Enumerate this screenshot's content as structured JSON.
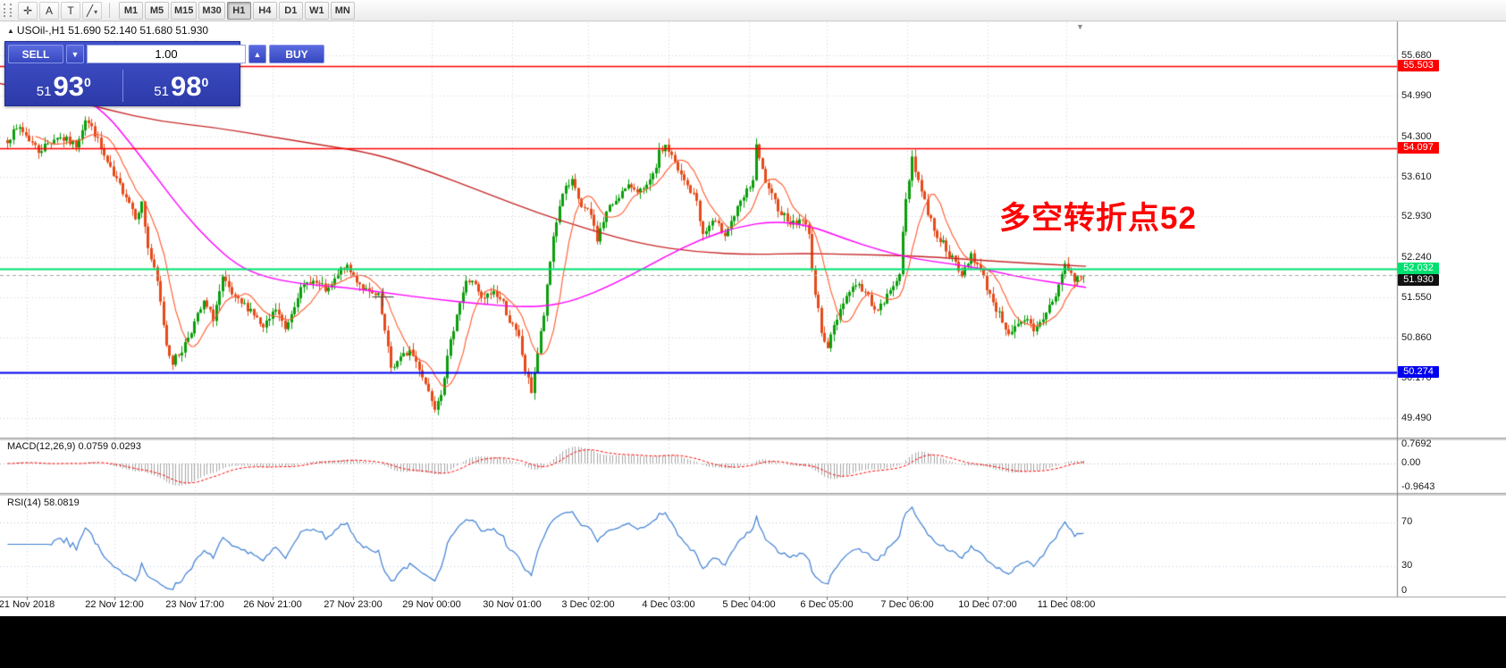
{
  "toolbar": {
    "tools": [
      {
        "name": "crosshair",
        "glyph": "✛"
      },
      {
        "name": "text",
        "glyph": "A"
      },
      {
        "name": "label",
        "glyph": "T"
      },
      {
        "name": "shapes",
        "glyph": "╱"
      }
    ],
    "shapes_caret": "▾",
    "timeframes": [
      {
        "label": "M1",
        "active": false
      },
      {
        "label": "M5",
        "active": false
      },
      {
        "label": "M15",
        "active": false
      },
      {
        "label": "M30",
        "active": false
      },
      {
        "label": "H1",
        "active": true
      },
      {
        "label": "H4",
        "active": false
      },
      {
        "label": "D1",
        "active": false
      },
      {
        "label": "W1",
        "active": false
      },
      {
        "label": "MN",
        "active": false
      }
    ]
  },
  "chart": {
    "symbol_header": "USOil-,H1 51.690 52.140 51.680 51.930",
    "collapse_marker": "▲",
    "shift_marker": "▼",
    "annotation": "多空转折点52",
    "annotation_color": "#fe0000"
  },
  "trade_panel": {
    "sell_label": "SELL",
    "buy_label": "BUY",
    "volume": "1.00",
    "sell_price": {
      "prefix": "51",
      "big": "93",
      "sup": "0"
    },
    "buy_price": {
      "prefix": "51",
      "big": "98",
      "sup": "0"
    }
  },
  "indicators": {
    "macd": {
      "label": "MACD(12,26,9) 0.0759 0.0293",
      "axis": [
        "0.7692",
        "0.00",
        "-0.9643"
      ]
    },
    "rsi": {
      "label": "RSI(14) 58.0819",
      "axis": [
        "70",
        "30",
        "0"
      ]
    }
  },
  "chart_data": {
    "type": "candlestick",
    "symbol": "USOil-",
    "timeframe": "H1",
    "ohlc_header": {
      "open": 51.69,
      "high": 52.14,
      "low": 51.68,
      "close": 51.93
    },
    "quote": {
      "bid": 51.93,
      "ask": 51.98
    },
    "candle_colors": {
      "up": "#0b9e0b",
      "down": "#e64a19"
    },
    "y_axis": {
      "gridline_prices": [
        55.68,
        54.99,
        54.3,
        53.61,
        52.93,
        52.24,
        51.55,
        50.86,
        50.17,
        49.49
      ],
      "gridline_labels": [
        "55.680",
        "54.990",
        "54.300",
        "53.610",
        "52.930",
        "52.240",
        "51.550",
        "50.860",
        "50.170",
        "49.490"
      ]
    },
    "x_axis": {
      "tick_labels": [
        "21 Nov 2018",
        "22 Nov 12:00",
        "23 Nov 17:00",
        "26 Nov 21:00",
        "27 Nov 23:00",
        "29 Nov 00:00",
        "30 Nov 01:00",
        "3 Dec 02:00",
        "4 Dec 03:00",
        "5 Dec 04:00",
        "6 Dec 05:00",
        "7 Dec 06:00",
        "10 Dec 07:00",
        "11 Dec 08:00"
      ],
      "tick_x": [
        30,
        128,
        218,
        305,
        395,
        483,
        573,
        658,
        748,
        838,
        925,
        1015,
        1105,
        1193
      ]
    },
    "hlines": [
      {
        "price": 55.503,
        "label": "55.503",
        "color": "#ff0000",
        "width": 1.3
      },
      {
        "price": 54.097,
        "label": "54.097",
        "color": "#ff0000",
        "width": 1.3
      },
      {
        "price": 52.032,
        "label": "52.032",
        "color": "#00e070",
        "width": 2
      },
      {
        "price": 50.274,
        "label": "50.274",
        "color": "#0000f0",
        "width": 2
      }
    ],
    "current_price": {
      "price": 51.93,
      "label": "51.930",
      "badge_color": "#111111"
    },
    "price_waypoints": [
      [
        0,
        54.25
      ],
      [
        4,
        54.45
      ],
      [
        10,
        54.05
      ],
      [
        16,
        54.3
      ],
      [
        22,
        54.15
      ],
      [
        25,
        54.6
      ],
      [
        28,
        54.35
      ],
      [
        31,
        53.95
      ],
      [
        34,
        53.6
      ],
      [
        38,
        53.3
      ],
      [
        41,
        52.95
      ],
      [
        43,
        53.15
      ],
      [
        45,
        52.4
      ],
      [
        48,
        51.8
      ],
      [
        51,
        50.75
      ],
      [
        53,
        50.45
      ],
      [
        56,
        50.65
      ],
      [
        59,
        51.0
      ],
      [
        63,
        51.45
      ],
      [
        66,
        51.2
      ],
      [
        69,
        51.85
      ],
      [
        73,
        51.5
      ],
      [
        78,
        51.35
      ],
      [
        82,
        51.0
      ],
      [
        86,
        51.35
      ],
      [
        89,
        51.0
      ],
      [
        93,
        51.6
      ],
      [
        97,
        51.85
      ],
      [
        100,
        51.75
      ],
      [
        103,
        51.65
      ],
      [
        108,
        52.1
      ],
      [
        112,
        51.85
      ],
      [
        116,
        51.6
      ],
      [
        119,
        51.55
      ],
      [
        121,
        50.95
      ],
      [
        123,
        50.35
      ],
      [
        126,
        50.5
      ],
      [
        129,
        50.65
      ],
      [
        132,
        50.35
      ],
      [
        135,
        49.95
      ],
      [
        137,
        49.7
      ],
      [
        139,
        49.95
      ],
      [
        141,
        50.5
      ],
      [
        144,
        51.3
      ],
      [
        147,
        51.8
      ],
      [
        149,
        51.85
      ],
      [
        152,
        51.5
      ],
      [
        156,
        51.65
      ],
      [
        159,
        51.45
      ],
      [
        161,
        51.15
      ],
      [
        164,
        50.85
      ],
      [
        166,
        50.3
      ],
      [
        168,
        49.95
      ],
      [
        170,
        50.6
      ],
      [
        172,
        51.25
      ],
      [
        175,
        52.6
      ],
      [
        178,
        53.35
      ],
      [
        181,
        53.5
      ],
      [
        184,
        53.1
      ],
      [
        187,
        52.95
      ],
      [
        189,
        52.55
      ],
      [
        192,
        53.0
      ],
      [
        196,
        53.3
      ],
      [
        200,
        53.45
      ],
      [
        204,
        53.35
      ],
      [
        207,
        53.6
      ],
      [
        209,
        54.0
      ],
      [
        211,
        54.15
      ],
      [
        213,
        53.95
      ],
      [
        215,
        53.7
      ],
      [
        218,
        53.45
      ],
      [
        221,
        53.2
      ],
      [
        223,
        52.6
      ],
      [
        226,
        52.85
      ],
      [
        230,
        52.65
      ],
      [
        233,
        52.95
      ],
      [
        236,
        53.25
      ],
      [
        239,
        53.55
      ],
      [
        240,
        54.1
      ],
      [
        242,
        53.7
      ],
      [
        244,
        53.35
      ],
      [
        248,
        53.0
      ],
      [
        252,
        52.8
      ],
      [
        255,
        52.9
      ],
      [
        257,
        52.6
      ],
      [
        259,
        51.6
      ],
      [
        261,
        51.0
      ],
      [
        263,
        50.7
      ],
      [
        265,
        51.05
      ],
      [
        268,
        51.5
      ],
      [
        272,
        51.8
      ],
      [
        276,
        51.55
      ],
      [
        279,
        51.3
      ],
      [
        283,
        51.65
      ],
      [
        286,
        52.0
      ],
      [
        288,
        53.2
      ],
      [
        290,
        53.95
      ],
      [
        292,
        53.55
      ],
      [
        295,
        53.0
      ],
      [
        298,
        52.6
      ],
      [
        301,
        52.4
      ],
      [
        303,
        52.2
      ],
      [
        306,
        51.9
      ],
      [
        309,
        52.3
      ],
      [
        312,
        52.0
      ],
      [
        315,
        51.6
      ],
      [
        318,
        51.25
      ],
      [
        321,
        50.95
      ],
      [
        324,
        51.05
      ],
      [
        327,
        51.15
      ],
      [
        329,
        50.95
      ],
      [
        331,
        51.1
      ],
      [
        333,
        51.3
      ],
      [
        336,
        51.6
      ],
      [
        339,
        52.1
      ],
      [
        342,
        51.85
      ],
      [
        345,
        51.93
      ]
    ],
    "overlays": [
      {
        "name": "ma-slow",
        "color": "#c62828",
        "points": [
          [
            0,
            55.2
          ],
          [
            60,
            55.0
          ],
          [
            120,
            54.75
          ],
          [
            180,
            54.55
          ],
          [
            240,
            54.45
          ],
          [
            300,
            54.3
          ],
          [
            360,
            54.15
          ],
          [
            420,
            54.0
          ],
          [
            480,
            53.7
          ],
          [
            540,
            53.35
          ],
          [
            600,
            53.0
          ],
          [
            660,
            52.7
          ],
          [
            720,
            52.45
          ],
          [
            780,
            52.32
          ],
          [
            840,
            52.28
          ],
          [
            900,
            52.3
          ],
          [
            960,
            52.28
          ],
          [
            1020,
            52.26
          ],
          [
            1080,
            52.2
          ],
          [
            1140,
            52.14
          ],
          [
            1215,
            52.08
          ]
        ]
      },
      {
        "name": "ma-medium",
        "color": "#ff00ff",
        "points": [
          [
            85,
            55.05
          ],
          [
            115,
            54.75
          ],
          [
            145,
            54.2
          ],
          [
            175,
            53.6
          ],
          [
            205,
            53.0
          ],
          [
            235,
            52.5
          ],
          [
            265,
            52.1
          ],
          [
            295,
            51.9
          ],
          [
            335,
            51.78
          ],
          [
            385,
            51.72
          ],
          [
            435,
            51.62
          ],
          [
            485,
            51.52
          ],
          [
            535,
            51.44
          ],
          [
            585,
            51.38
          ],
          [
            625,
            51.42
          ],
          [
            665,
            51.62
          ],
          [
            705,
            51.92
          ],
          [
            745,
            52.25
          ],
          [
            785,
            52.55
          ],
          [
            825,
            52.75
          ],
          [
            865,
            52.85
          ],
          [
            905,
            52.78
          ],
          [
            945,
            52.55
          ],
          [
            985,
            52.35
          ],
          [
            1025,
            52.2
          ],
          [
            1065,
            52.12
          ],
          [
            1105,
            52.02
          ],
          [
            1145,
            51.88
          ],
          [
            1215,
            51.72
          ]
        ]
      },
      {
        "name": "ma-fast",
        "color": "#ff5a2c",
        "period": 10
      }
    ],
    "macd": {
      "params": [
        12,
        26,
        9
      ],
      "value": 0.0759,
      "signal_value": 0.0293,
      "axis_max": 0.7692,
      "axis_min": -0.9643,
      "hist_color": "#a6a6a6",
      "signal_color": "#ff0000"
    },
    "rsi": {
      "period": 14,
      "value": 58.0819,
      "levels": [
        70,
        30
      ],
      "line_color": "#3e7fd4",
      "level_color": "#b9c8e0"
    }
  }
}
